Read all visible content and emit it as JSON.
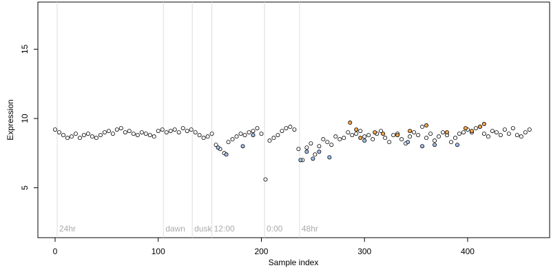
{
  "chart_data": {
    "type": "scatter",
    "xlabel": "Sample index",
    "ylabel": "Expression",
    "xlim": [
      -16.7,
      479.5
    ],
    "ylim": [
      1.4,
      18.4
    ],
    "xticks": [
      0,
      100,
      200,
      300,
      400
    ],
    "yticks": [
      5,
      10,
      15
    ],
    "annotations": [
      {
        "x": 2,
        "label": "24hr"
      },
      {
        "x": 105,
        "label": "dawn"
      },
      {
        "x": 133,
        "label": "dusk"
      },
      {
        "x": 152,
        "label": "12:00"
      },
      {
        "x": 203,
        "label": "0:00"
      },
      {
        "x": 237,
        "label": "48hr"
      }
    ],
    "annotation_y": 2,
    "series": [
      {
        "color": "#ffffff",
        "x": [
          0,
          4,
          8,
          12,
          16,
          20,
          24,
          28,
          32,
          36,
          40,
          44,
          48,
          52,
          56,
          60,
          64,
          68,
          72,
          76,
          80,
          84,
          88,
          92,
          96,
          100,
          104,
          108,
          112,
          116,
          120,
          124,
          128,
          132,
          136,
          140,
          144,
          148,
          152,
          156,
          160,
          164,
          168,
          172,
          176,
          180,
          184,
          188,
          192,
          196,
          200,
          204,
          208,
          212,
          216,
          220,
          224,
          228,
          232,
          236,
          240,
          244,
          248,
          252,
          256,
          260,
          264,
          268,
          272,
          276,
          280,
          284,
          288,
          292,
          296,
          300,
          304,
          308,
          312,
          316,
          320,
          324,
          328,
          332,
          336,
          340,
          344,
          348,
          352,
          356,
          360,
          364,
          368,
          372,
          376,
          380,
          384,
          388,
          392,
          396,
          400,
          404,
          408,
          412,
          416,
          420,
          424,
          428,
          432,
          436,
          440,
          444,
          448,
          452,
          456,
          460
        ],
        "values": [
          9.2,
          9.0,
          8.8,
          8.6,
          8.7,
          8.9,
          8.6,
          8.8,
          8.9,
          8.7,
          8.6,
          8.8,
          9.0,
          9.1,
          8.9,
          9.2,
          9.3,
          9.0,
          9.1,
          8.9,
          8.8,
          9.0,
          8.9,
          8.8,
          8.7,
          9.1,
          9.2,
          9.0,
          9.1,
          9.2,
          9.0,
          9.3,
          9.1,
          9.2,
          9.0,
          8.8,
          8.6,
          8.7,
          8.9,
          8.1,
          7.8,
          7.5,
          8.3,
          8.5,
          8.7,
          8.9,
          8.8,
          9.0,
          9.1,
          9.3,
          8.9,
          5.6,
          8.4,
          8.6,
          8.8,
          9.1,
          9.3,
          9.4,
          9.2,
          7.8,
          7.0,
          7.9,
          8.2,
          7.4,
          8.0,
          8.5,
          8.3,
          8.1,
          8.7,
          8.5,
          8.6,
          9.0,
          8.8,
          8.9,
          9.1,
          8.7,
          8.8,
          8.5,
          8.9,
          9.1,
          8.6,
          8.3,
          8.8,
          8.9,
          8.5,
          8.2,
          8.7,
          9.0,
          8.8,
          9.4,
          8.6,
          8.9,
          8.4,
          8.7,
          9.0,
          8.8,
          8.3,
          8.6,
          8.9,
          9.0,
          9.2,
          9.0,
          9.3,
          9.4,
          8.9,
          8.7,
          9.1,
          9.0,
          8.8,
          9.2,
          8.9,
          9.3,
          8.8,
          8.7,
          9.0,
          9.2
        ]
      },
      {
        "color": "#f5a64a",
        "x": [
          286,
          292,
          296,
          310,
          318,
          332,
          344,
          360,
          380,
          398,
          404,
          412,
          416
        ],
        "values": [
          9.7,
          9.2,
          8.6,
          9.0,
          8.9,
          8.8,
          9.1,
          9.5,
          9.0,
          9.3,
          9.1,
          9.4,
          9.6
        ]
      },
      {
        "color": "#9fc0ee",
        "x": [
          158,
          166,
          182,
          192,
          238,
          244,
          250,
          256,
          266,
          300,
          342,
          356,
          368,
          390
        ],
        "values": [
          7.9,
          7.4,
          8.0,
          8.8,
          7.0,
          7.6,
          7.1,
          7.6,
          7.2,
          8.4,
          8.3,
          8.0,
          8.1,
          8.1
        ]
      }
    ]
  }
}
